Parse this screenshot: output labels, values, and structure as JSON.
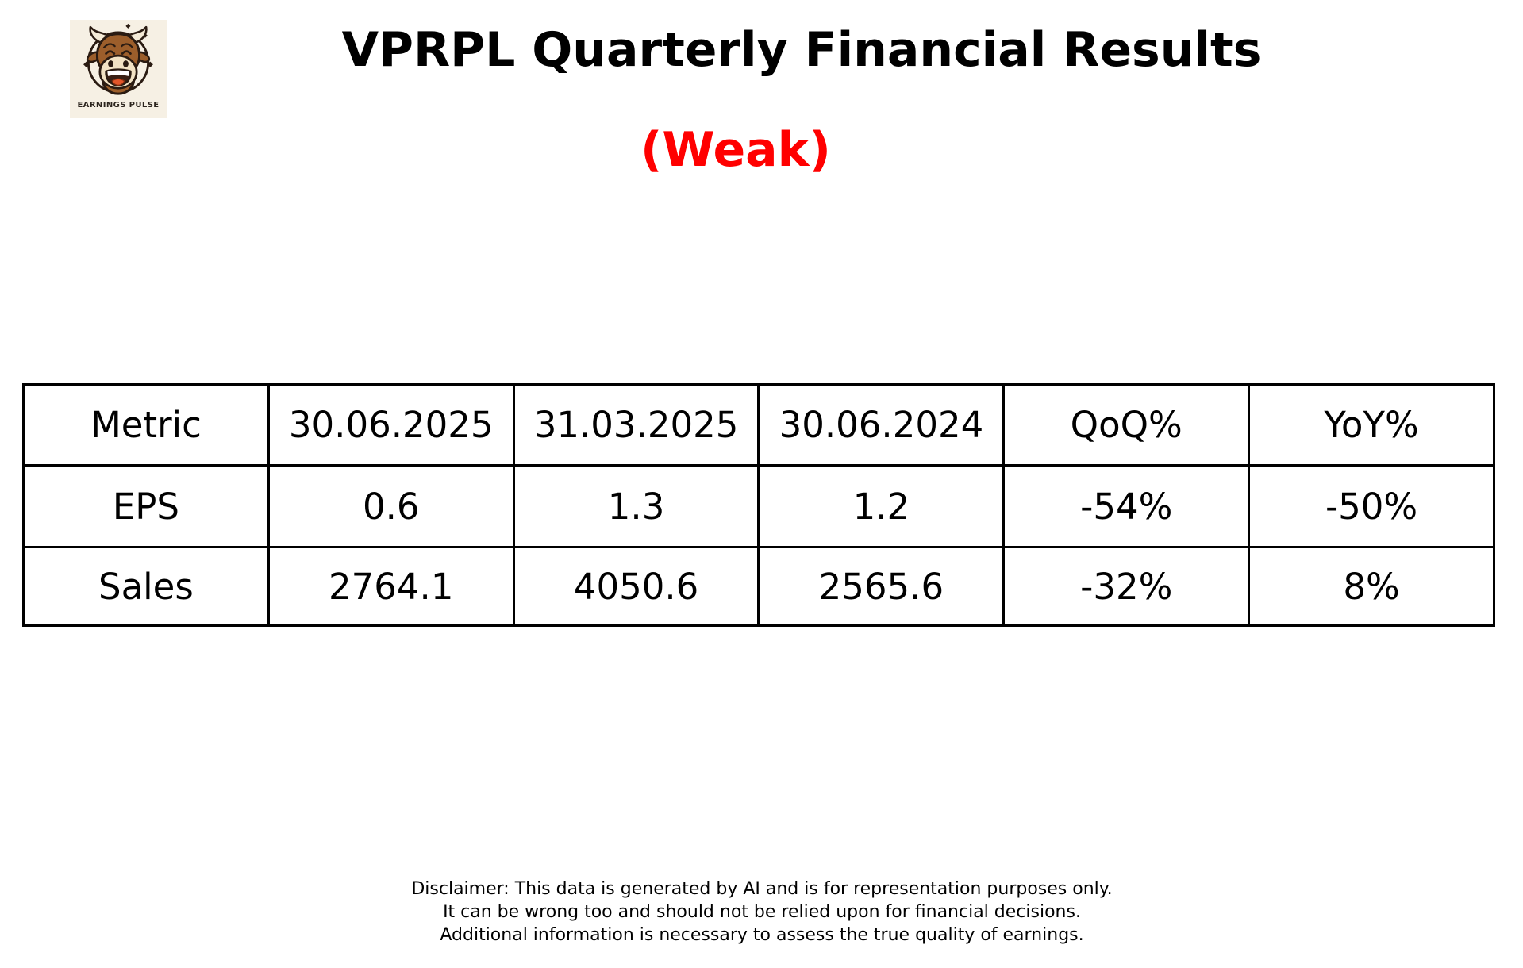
{
  "logo": {
    "brand": "EARNINGS PULSE",
    "icon": "laughing-bull-icon",
    "background": "#f6f0e4"
  },
  "header": {
    "title": "VPRPL Quarterly Financial Results",
    "verdict": "(Weak)"
  },
  "colors": {
    "negative": "#ff0000",
    "positive": "#008000",
    "text": "#000000",
    "border": "#000000"
  },
  "table": {
    "columns": [
      "Metric",
      "30.06.2025",
      "31.03.2025",
      "30.06.2024",
      "QoQ%",
      "YoY%"
    ],
    "rows": [
      [
        {
          "text": "EPS"
        },
        {
          "text": "0.6"
        },
        {
          "text": "1.3"
        },
        {
          "text": "1.2"
        },
        {
          "text": "-54%",
          "tone": "negative"
        },
        {
          "text": "-50%",
          "tone": "negative"
        }
      ],
      [
        {
          "text": "Sales"
        },
        {
          "text": "2764.1"
        },
        {
          "text": "4050.6"
        },
        {
          "text": "2565.6"
        },
        {
          "text": "-32%",
          "tone": "negative"
        },
        {
          "text": "8%",
          "tone": "positive"
        }
      ]
    ]
  },
  "disclaimer": {
    "line1": "Disclaimer: This data is generated by AI and is for representation purposes only.",
    "line2": "It can be wrong too and should not be relied upon for financial decisions.",
    "line3": "Additional information is necessary to assess the true quality of earnings."
  },
  "chart_data": {
    "type": "table",
    "title": "VPRPL Quarterly Financial Results",
    "subtitle": "(Weak)",
    "columns": [
      "Metric",
      "30.06.2025",
      "31.03.2025",
      "30.06.2024",
      "QoQ%",
      "YoY%"
    ],
    "rows": [
      [
        "EPS",
        0.6,
        1.3,
        1.2,
        "-54%",
        "-50%"
      ],
      [
        "Sales",
        2764.1,
        4050.6,
        2565.6,
        "-32%",
        "8%"
      ]
    ],
    "value_color_rules": "negative percentages red (#ff0000), positive percentages green (#008000)"
  }
}
